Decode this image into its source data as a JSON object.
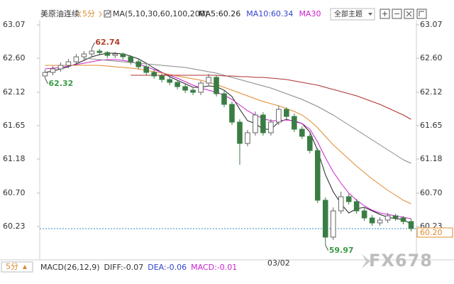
{
  "chart_data": {
    "type": "candlestick",
    "title": "美原油连续",
    "period": "5分",
    "indicator": "MA(5,10,30,60,100,200)",
    "legend": [
      {
        "text": "MA5:60.26",
        "color": "#222222"
      },
      {
        "text": "MA10:60.34",
        "color": "#3344cc"
      },
      {
        "text": "MA30",
        "color": "#cc22cc"
      }
    ],
    "theme_button": "全部主题",
    "categories": [
      null,
      null,
      null,
      null,
      null,
      null,
      null,
      null,
      null,
      null,
      null,
      null,
      null,
      null,
      null,
      null,
      null,
      null,
      null,
      null,
      null,
      null,
      null,
      null,
      null,
      null,
      null,
      null,
      null,
      null,
      "03/02",
      null,
      null,
      null,
      null,
      null,
      null,
      null,
      null,
      null,
      null,
      null,
      null,
      null,
      null,
      null,
      null,
      null
    ],
    "open": [
      62.35,
      62.4,
      62.45,
      62.5,
      62.55,
      62.62,
      62.66,
      62.7,
      62.68,
      62.64,
      62.66,
      62.62,
      62.55,
      62.48,
      62.4,
      62.35,
      62.3,
      62.26,
      62.2,
      62.15,
      62.12,
      62.25,
      62.33,
      62.1,
      61.95,
      61.7,
      61.4,
      61.55,
      61.8,
      61.55,
      61.7,
      61.88,
      61.78,
      61.6,
      61.5,
      61.3,
      60.6,
      60.08,
      60.45,
      60.65,
      60.58,
      60.45,
      60.35,
      60.28,
      60.32,
      60.38,
      60.35,
      60.3
    ],
    "high": [
      62.44,
      62.49,
      62.54,
      62.59,
      62.66,
      62.7,
      62.74,
      62.73,
      62.7,
      62.69,
      62.68,
      62.64,
      62.58,
      62.51,
      62.44,
      62.38,
      62.33,
      62.29,
      62.23,
      62.18,
      62.28,
      62.38,
      62.36,
      62.14,
      61.99,
      61.74,
      61.59,
      61.85,
      61.84,
      61.74,
      61.93,
      61.91,
      61.82,
      61.64,
      61.54,
      61.33,
      60.64,
      60.5,
      60.72,
      60.69,
      60.62,
      60.49,
      60.39,
      60.36,
      60.42,
      60.41,
      60.38,
      60.34
    ],
    "low": [
      62.32,
      62.36,
      62.41,
      62.46,
      62.51,
      62.58,
      62.62,
      62.64,
      62.6,
      62.6,
      62.58,
      62.51,
      62.44,
      62.36,
      62.31,
      62.26,
      62.22,
      62.16,
      62.11,
      62.08,
      62.08,
      62.21,
      62.06,
      61.91,
      61.66,
      61.1,
      61.36,
      61.51,
      61.51,
      61.51,
      61.66,
      61.74,
      61.56,
      61.46,
      61.26,
      60.56,
      59.97,
      60.04,
      60.41,
      60.54,
      60.41,
      60.31,
      60.24,
      60.24,
      60.28,
      60.31,
      60.26,
      60.16
    ],
    "close": [
      62.4,
      62.45,
      62.5,
      62.55,
      62.62,
      62.66,
      62.7,
      62.68,
      62.64,
      62.66,
      62.62,
      62.55,
      62.48,
      62.4,
      62.35,
      62.3,
      62.26,
      62.2,
      62.15,
      62.12,
      62.25,
      62.33,
      62.1,
      61.95,
      61.7,
      61.4,
      61.55,
      61.8,
      61.55,
      61.7,
      61.88,
      61.78,
      61.6,
      61.5,
      61.3,
      60.6,
      60.08,
      60.45,
      60.65,
      60.58,
      60.45,
      60.35,
      60.28,
      60.32,
      60.38,
      60.35,
      60.3,
      60.2
    ],
    "up_color": "#666666",
    "down_color": "#3a7d44",
    "lines": [
      {
        "color": "#222222",
        "values": [
          62.4,
          62.42,
          62.45,
          62.48,
          62.52,
          62.57,
          62.62,
          62.65,
          62.67,
          62.67,
          62.66,
          62.63,
          62.59,
          62.53,
          62.46,
          62.4,
          62.34,
          62.29,
          62.24,
          62.19,
          62.19,
          62.21,
          62.2,
          62.15,
          62.06,
          61.88,
          61.72,
          61.68,
          61.6,
          61.6,
          61.7,
          61.74,
          61.71,
          61.68,
          61.56,
          61.3,
          60.96,
          60.72,
          60.55,
          60.42,
          60.48,
          60.5,
          60.45,
          60.4,
          60.36,
          60.34,
          60.33,
          60.26
        ]
      },
      {
        "color": "#cc22cc",
        "values": [
          62.45,
          62.46,
          62.47,
          62.49,
          62.51,
          62.53,
          62.55,
          62.57,
          62.58,
          62.58,
          62.57,
          62.55,
          62.52,
          62.48,
          62.44,
          62.4,
          62.36,
          62.32,
          62.27,
          62.22,
          62.18,
          62.15,
          62.12,
          62.08,
          62.02,
          61.94,
          61.86,
          61.8,
          61.75,
          61.72,
          61.72,
          61.73,
          61.72,
          61.68,
          61.6,
          61.42,
          61.2,
          61.0,
          60.84,
          60.7,
          60.6,
          60.52,
          60.46,
          60.42,
          60.4,
          60.38,
          60.36,
          60.34
        ]
      },
      {
        "color": "#e08a2e",
        "values": [
          62.5,
          62.5,
          62.5,
          62.5,
          62.5,
          62.5,
          62.5,
          62.5,
          62.49,
          62.48,
          62.47,
          62.46,
          62.45,
          62.43,
          62.41,
          62.39,
          62.37,
          62.35,
          62.33,
          62.31,
          62.29,
          62.26,
          62.23,
          62.19,
          62.15,
          62.11,
          62.07,
          62.03,
          61.99,
          61.96,
          61.93,
          61.89,
          61.85,
          61.8,
          61.72,
          61.62,
          61.5,
          61.38,
          61.28,
          61.18,
          61.08,
          60.99,
          60.9,
          60.82,
          60.74,
          60.67,
          60.6,
          60.55
        ]
      },
      {
        "color": "#888888",
        "values": [
          null,
          null,
          null,
          null,
          null,
          62.6,
          62.59,
          62.58,
          62.57,
          62.56,
          62.55,
          62.54,
          62.53,
          62.52,
          62.51,
          62.5,
          62.49,
          62.48,
          62.47,
          62.45,
          62.43,
          62.41,
          62.39,
          62.36,
          62.33,
          62.3,
          62.27,
          62.24,
          62.21,
          62.18,
          62.14,
          62.1,
          62.06,
          62.02,
          61.97,
          61.92,
          61.86,
          61.8,
          61.73,
          61.66,
          61.59,
          61.52,
          61.45,
          61.38,
          61.31,
          61.24,
          61.17,
          61.12
        ]
      },
      {
        "color": "#b03030",
        "values": [
          null,
          null,
          null,
          null,
          null,
          null,
          null,
          null,
          null,
          null,
          null,
          62.36,
          62.36,
          62.36,
          62.36,
          62.36,
          62.36,
          62.36,
          62.36,
          62.36,
          62.36,
          62.36,
          62.36,
          62.35,
          62.35,
          62.34,
          62.34,
          62.33,
          62.33,
          62.32,
          62.31,
          62.3,
          62.28,
          62.26,
          62.24,
          62.22,
          62.19,
          62.16,
          62.13,
          62.1,
          62.07,
          62.03,
          61.99,
          61.95,
          61.9,
          61.85,
          61.8,
          61.74
        ]
      }
    ],
    "annotations": [
      {
        "candle": 6,
        "value": 62.74,
        "color": "#b0402a",
        "side": "high"
      },
      {
        "candle": 0,
        "value": 62.32,
        "color": "#3a9a44",
        "side": "low"
      },
      {
        "candle": 36,
        "value": 59.97,
        "color": "#3a9a44",
        "side": "low"
      }
    ],
    "last_price": {
      "value": 60.2,
      "label": "60.20"
    },
    "last_price_color": "#e08a2e",
    "ylim": [
      59.9,
      63.22
    ],
    "yticks": [
      63.07,
      {
        "value": 62.6,
        "label": "62.60"
      },
      62.12,
      61.65,
      61.18,
      {
        "value": 60.7,
        "label": "60.70"
      },
      60.23
    ],
    "macd_title": "MACD(26,12,9)",
    "macd_items": [
      {
        "text": "DIFF:-0.07",
        "color": "#333333"
      },
      {
        "text": "DEA:-0.06",
        "color": "#3344cc"
      },
      {
        "text": "MACD:-0.01",
        "color": "#cc22cc"
      }
    ],
    "watermark": "FX678"
  }
}
